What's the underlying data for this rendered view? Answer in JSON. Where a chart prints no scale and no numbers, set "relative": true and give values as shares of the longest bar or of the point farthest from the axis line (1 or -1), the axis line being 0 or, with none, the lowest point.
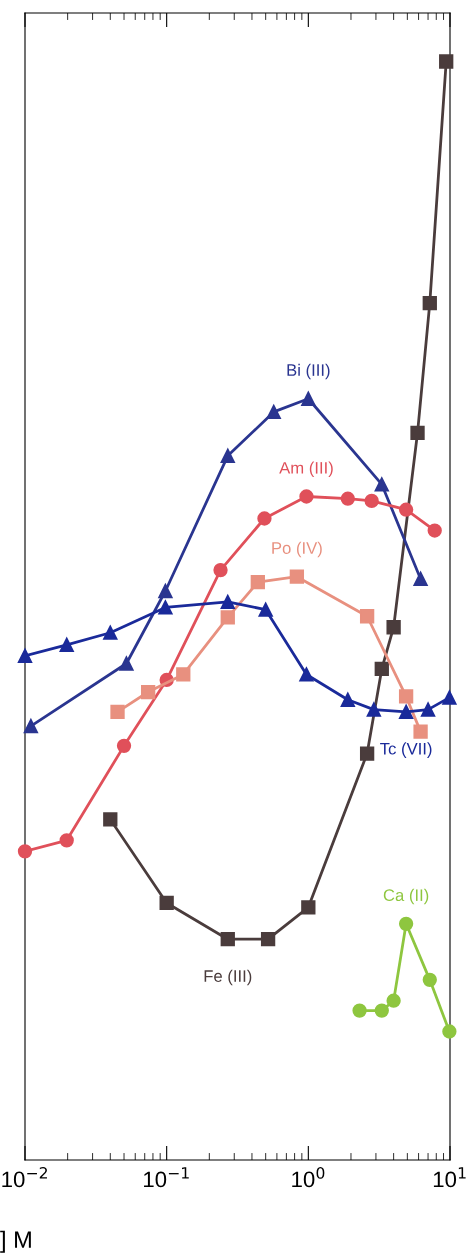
{
  "chart_data": {
    "type": "line",
    "relative": true,
    "log": "x",
    "xlabel": "] M",
    "xlim": [
      0.01,
      10
    ],
    "xticks": [
      {
        "value": 0.01,
        "label": "10$^{−2}$"
      },
      {
        "value": 0.1,
        "label": "10$^{−1}$"
      },
      {
        "value": 1,
        "label": "10$^{0}$"
      },
      {
        "value": 10,
        "label": "10$^{1}$"
      }
    ],
    "grid": false,
    "legend": false,
    "series": [
      {
        "name": "Fe (III)",
        "color": "#4a3c3c",
        "marker": "square",
        "x": [
          0.04,
          0.1,
          0.27,
          0.52,
          1.0,
          2.6,
          3.3,
          4.0,
          5.9,
          7.2,
          9.4
        ],
        "values": [
          0.31,
          0.234,
          0.201,
          0.201,
          0.23,
          0.37,
          0.447,
          0.485,
          0.662,
          0.78,
          1.0
        ]
      },
      {
        "name": "Bi (III)",
        "color": "#2a3590",
        "marker": "triangle",
        "x": [
          0.011,
          0.052,
          0.098,
          0.27,
          0.57,
          1.0,
          3.3,
          6.2
        ],
        "values": [
          0.395,
          0.452,
          0.518,
          0.641,
          0.681,
          0.693,
          0.615,
          0.529
        ]
      },
      {
        "name": "Am (III)",
        "color": "#e0505a",
        "marker": "circle",
        "x": [
          0.01,
          0.0197,
          0.05,
          0.1,
          0.24,
          0.49,
          0.97,
          1.9,
          2.8,
          4.9,
          7.8
        ],
        "values": [
          0.281,
          0.291,
          0.377,
          0.437,
          0.537,
          0.584,
          0.604,
          0.602,
          0.6,
          0.592,
          0.573
        ]
      },
      {
        "name": "Po (IV)",
        "color": "#e8907f",
        "marker": "square",
        "x": [
          0.045,
          0.074,
          0.131,
          0.27,
          0.44,
          0.83,
          2.6,
          4.9,
          6.2
        ],
        "values": [
          0.408,
          0.426,
          0.442,
          0.494,
          0.526,
          0.531,
          0.495,
          0.422,
          0.39
        ]
      },
      {
        "name": "Tc (VII)",
        "color": "#1a2a9a",
        "marker": "triangle",
        "x": [
          0.01,
          0.0197,
          0.04,
          0.098,
          0.27,
          0.5,
          0.97,
          1.9,
          2.9,
          4.9,
          7.0,
          9.9
        ],
        "values": [
          0.459,
          0.469,
          0.48,
          0.503,
          0.508,
          0.501,
          0.442,
          0.419,
          0.41,
          0.408,
          0.41,
          0.421
        ]
      },
      {
        "name": "Ca (II)",
        "color": "#8ec63f",
        "marker": "circle",
        "x": [
          2.3,
          3.3,
          4.0,
          4.9,
          7.2,
          9.9
        ],
        "values": [
          0.136,
          0.136,
          0.145,
          0.215,
          0.164,
          0.117
        ]
      }
    ]
  }
}
